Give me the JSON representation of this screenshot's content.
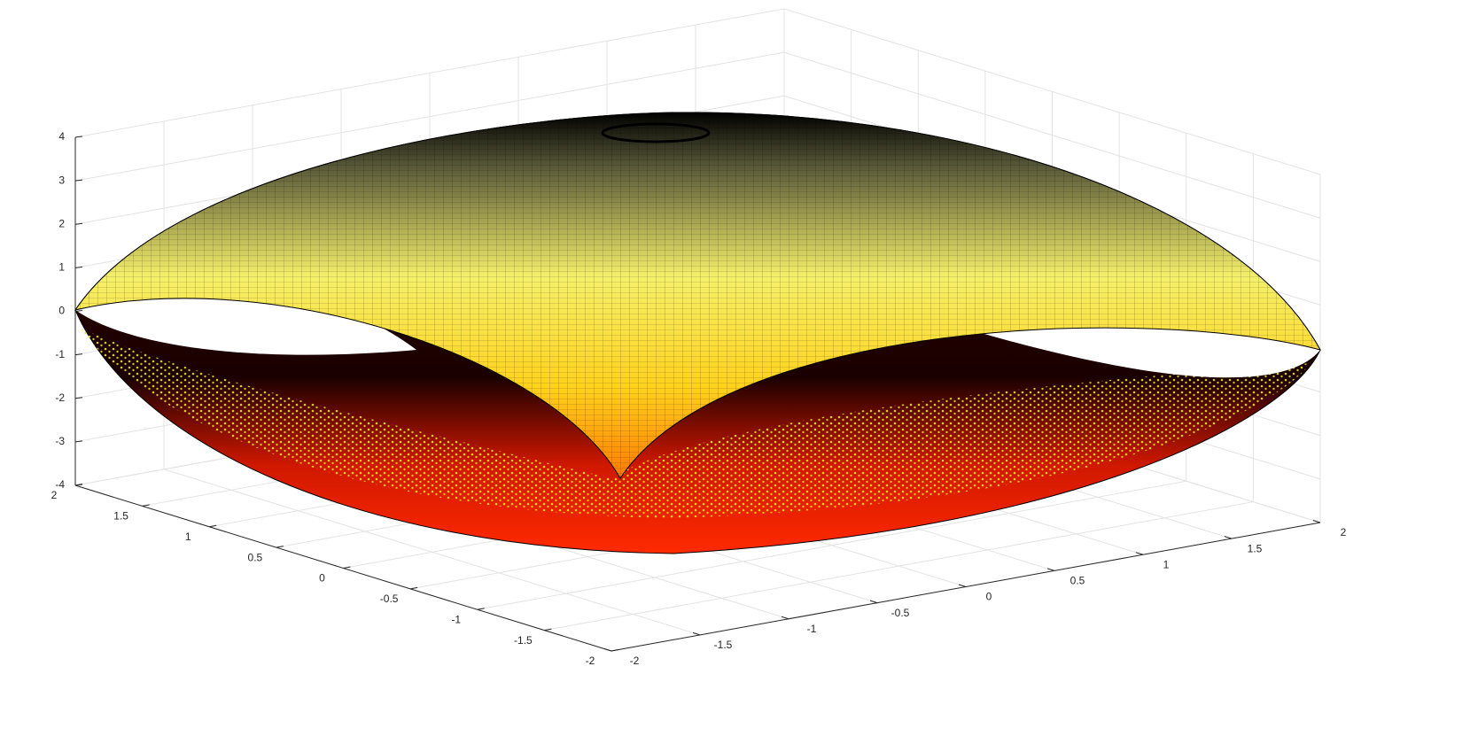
{
  "chart_data": {
    "type": "surface",
    "xlim": [
      -2,
      2
    ],
    "ylim": [
      -2,
      2
    ],
    "zlim": [
      -4,
      4
    ],
    "xticks": [
      -2,
      -1.5,
      -1,
      -0.5,
      0,
      0.5,
      1,
      1.5,
      2
    ],
    "yticks": [
      -2,
      -1.5,
      -1,
      -0.5,
      0,
      0.5,
      1,
      1.5,
      2
    ],
    "zticks": [
      -4,
      -3,
      -2,
      -1,
      0,
      1,
      2,
      3,
      4
    ],
    "grid": true
  }
}
